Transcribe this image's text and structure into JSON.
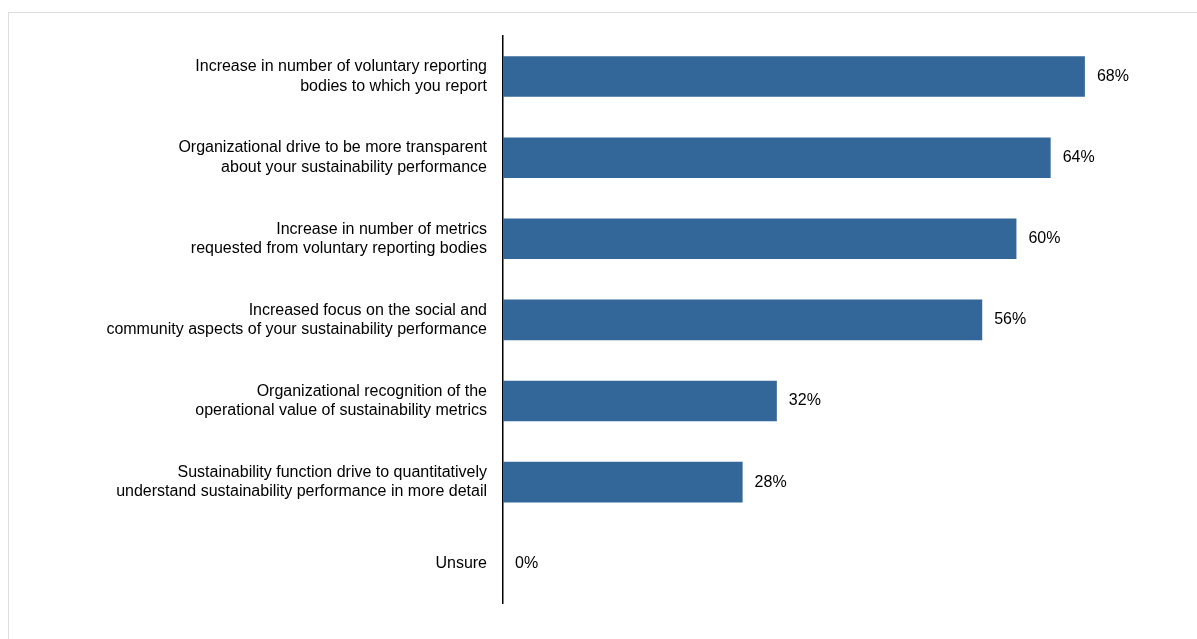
{
  "chart_data": {
    "type": "bar",
    "orientation": "horizontal",
    "categories": [
      "Increase in number of voluntary reporting\nbodies to which you report",
      "Organizational drive to be more transparent\nabout your sustainability performance",
      "Increase in number of metrics\nrequested from voluntary reporting bodies",
      "Increased focus on the social and\ncommunity aspects of your sustainability performance",
      "Organizational recognition of the\noperational value of sustainability metrics",
      "Sustainability function drive to quantitatively\nunderstand sustainability performance in more detail",
      "Unsure"
    ],
    "values": [
      68,
      64,
      60,
      56,
      32,
      28,
      0
    ],
    "value_labels": [
      "68%",
      "64%",
      "60%",
      "56%",
      "32%",
      "28%",
      "0%"
    ],
    "color": "#336699",
    "tick_labels": "y",
    "grid": false,
    "legend": false
  }
}
